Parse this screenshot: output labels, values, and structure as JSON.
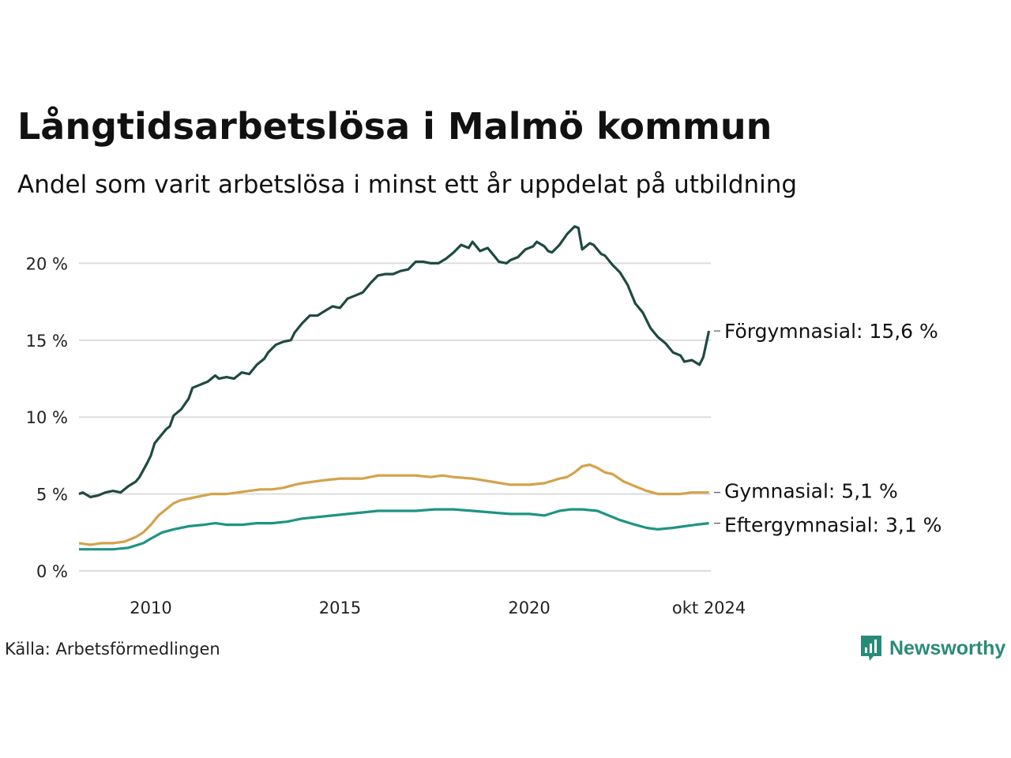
{
  "title": "Långtidsarbetslösa i Malmö kommun",
  "subtitle": "Andel som varit arbetslösa i minst ett år uppdelat på utbildning",
  "source": "Källa: Arbetsförmedlingen",
  "brand": {
    "name": "Newsworthy",
    "logo_icon": "bar-chart-speech-bubble-icon",
    "color": "#2a8a78"
  },
  "chart_data": {
    "type": "line",
    "ylim": [
      0,
      23
    ],
    "xlim": [
      2008.1,
      2024.8
    ],
    "grid": true,
    "y_ticks": [
      {
        "value": 0,
        "label": "0 %"
      },
      {
        "value": 5,
        "label": "5 %"
      },
      {
        "value": 10,
        "label": "10 %"
      },
      {
        "value": 15,
        "label": "15 %"
      },
      {
        "value": 20,
        "label": "20 %"
      }
    ],
    "x_ticks": [
      {
        "value": 2010,
        "label": "2010"
      },
      {
        "value": 2015,
        "label": "2015"
      },
      {
        "value": 2020,
        "label": "2020"
      },
      {
        "value": 2024.75,
        "label": "okt 2024"
      }
    ],
    "series": [
      {
        "name": "Förgymnasial",
        "end_label": "Förgymnasial: 15,6 %",
        "color": "#1f4a42",
        "points": [
          [
            2008.1,
            5.0
          ],
          [
            2008.2,
            5.1
          ],
          [
            2008.4,
            4.8
          ],
          [
            2008.6,
            4.9
          ],
          [
            2008.8,
            5.1
          ],
          [
            2009.0,
            5.2
          ],
          [
            2009.2,
            5.1
          ],
          [
            2009.4,
            5.5
          ],
          [
            2009.6,
            5.8
          ],
          [
            2009.7,
            6.1
          ],
          [
            2009.9,
            7.0
          ],
          [
            2010.0,
            7.5
          ],
          [
            2010.1,
            8.3
          ],
          [
            2010.3,
            8.9
          ],
          [
            2010.4,
            9.2
          ],
          [
            2010.5,
            9.4
          ],
          [
            2010.6,
            10.1
          ],
          [
            2010.8,
            10.5
          ],
          [
            2011.0,
            11.2
          ],
          [
            2011.1,
            11.9
          ],
          [
            2011.3,
            12.1
          ],
          [
            2011.5,
            12.3
          ],
          [
            2011.7,
            12.7
          ],
          [
            2011.8,
            12.5
          ],
          [
            2012.0,
            12.6
          ],
          [
            2012.2,
            12.5
          ],
          [
            2012.4,
            12.9
          ],
          [
            2012.6,
            12.8
          ],
          [
            2012.8,
            13.4
          ],
          [
            2013.0,
            13.8
          ],
          [
            2013.1,
            14.2
          ],
          [
            2013.3,
            14.7
          ],
          [
            2013.5,
            14.9
          ],
          [
            2013.7,
            15.0
          ],
          [
            2013.8,
            15.5
          ],
          [
            2014.0,
            16.1
          ],
          [
            2014.2,
            16.6
          ],
          [
            2014.4,
            16.6
          ],
          [
            2014.6,
            16.9
          ],
          [
            2014.8,
            17.2
          ],
          [
            2015.0,
            17.1
          ],
          [
            2015.2,
            17.7
          ],
          [
            2015.4,
            17.9
          ],
          [
            2015.6,
            18.1
          ],
          [
            2015.8,
            18.7
          ],
          [
            2016.0,
            19.2
          ],
          [
            2016.2,
            19.3
          ],
          [
            2016.4,
            19.3
          ],
          [
            2016.6,
            19.5
          ],
          [
            2016.8,
            19.6
          ],
          [
            2017.0,
            20.1
          ],
          [
            2017.2,
            20.1
          ],
          [
            2017.4,
            20.0
          ],
          [
            2017.6,
            20.0
          ],
          [
            2017.8,
            20.3
          ],
          [
            2018.0,
            20.7
          ],
          [
            2018.2,
            21.2
          ],
          [
            2018.4,
            21.0
          ],
          [
            2018.5,
            21.4
          ],
          [
            2018.7,
            20.8
          ],
          [
            2018.9,
            21.0
          ],
          [
            2019.0,
            20.7
          ],
          [
            2019.2,
            20.1
          ],
          [
            2019.4,
            20.0
          ],
          [
            2019.5,
            20.2
          ],
          [
            2019.7,
            20.4
          ],
          [
            2019.9,
            20.9
          ],
          [
            2020.1,
            21.1
          ],
          [
            2020.2,
            21.4
          ],
          [
            2020.4,
            21.1
          ],
          [
            2020.5,
            20.8
          ],
          [
            2020.6,
            20.7
          ],
          [
            2020.8,
            21.2
          ],
          [
            2021.0,
            21.9
          ],
          [
            2021.2,
            22.4
          ],
          [
            2021.3,
            22.3
          ],
          [
            2021.4,
            20.9
          ],
          [
            2021.6,
            21.3
          ],
          [
            2021.7,
            21.2
          ],
          [
            2021.9,
            20.6
          ],
          [
            2022.0,
            20.5
          ],
          [
            2022.2,
            19.9
          ],
          [
            2022.4,
            19.4
          ],
          [
            2022.6,
            18.6
          ],
          [
            2022.8,
            17.4
          ],
          [
            2023.0,
            16.8
          ],
          [
            2023.2,
            15.8
          ],
          [
            2023.4,
            15.2
          ],
          [
            2023.6,
            14.8
          ],
          [
            2023.8,
            14.2
          ],
          [
            2024.0,
            14.0
          ],
          [
            2024.1,
            13.6
          ],
          [
            2024.3,
            13.7
          ],
          [
            2024.5,
            13.4
          ],
          [
            2024.6,
            13.9
          ],
          [
            2024.75,
            15.6
          ]
        ]
      },
      {
        "name": "Gymnasial",
        "end_label": "Gymnasial:  5,1 %",
        "color": "#d4a24a",
        "points": [
          [
            2008.1,
            1.8
          ],
          [
            2008.4,
            1.7
          ],
          [
            2008.7,
            1.8
          ],
          [
            2009.0,
            1.8
          ],
          [
            2009.3,
            1.9
          ],
          [
            2009.6,
            2.2
          ],
          [
            2009.8,
            2.5
          ],
          [
            2010.0,
            3.0
          ],
          [
            2010.2,
            3.6
          ],
          [
            2010.4,
            4.0
          ],
          [
            2010.6,
            4.4
          ],
          [
            2010.8,
            4.6
          ],
          [
            2011.0,
            4.7
          ],
          [
            2011.2,
            4.8
          ],
          [
            2011.4,
            4.9
          ],
          [
            2011.6,
            5.0
          ],
          [
            2011.8,
            5.0
          ],
          [
            2012.0,
            5.0
          ],
          [
            2012.3,
            5.1
          ],
          [
            2012.6,
            5.2
          ],
          [
            2012.9,
            5.3
          ],
          [
            2013.2,
            5.3
          ],
          [
            2013.5,
            5.4
          ],
          [
            2013.8,
            5.6
          ],
          [
            2014.0,
            5.7
          ],
          [
            2014.3,
            5.8
          ],
          [
            2014.6,
            5.9
          ],
          [
            2015.0,
            6.0
          ],
          [
            2015.3,
            6.0
          ],
          [
            2015.6,
            6.0
          ],
          [
            2016.0,
            6.2
          ],
          [
            2016.3,
            6.2
          ],
          [
            2016.6,
            6.2
          ],
          [
            2017.0,
            6.2
          ],
          [
            2017.4,
            6.1
          ],
          [
            2017.7,
            6.2
          ],
          [
            2018.0,
            6.1
          ],
          [
            2018.5,
            6.0
          ],
          [
            2019.0,
            5.8
          ],
          [
            2019.5,
            5.6
          ],
          [
            2020.0,
            5.6
          ],
          [
            2020.4,
            5.7
          ],
          [
            2020.8,
            6.0
          ],
          [
            2021.0,
            6.1
          ],
          [
            2021.2,
            6.4
          ],
          [
            2021.4,
            6.8
          ],
          [
            2021.6,
            6.9
          ],
          [
            2021.8,
            6.7
          ],
          [
            2022.0,
            6.4
          ],
          [
            2022.2,
            6.3
          ],
          [
            2022.5,
            5.8
          ],
          [
            2022.8,
            5.5
          ],
          [
            2023.1,
            5.2
          ],
          [
            2023.4,
            5.0
          ],
          [
            2023.7,
            5.0
          ],
          [
            2024.0,
            5.0
          ],
          [
            2024.3,
            5.1
          ],
          [
            2024.75,
            5.1
          ]
        ]
      },
      {
        "name": "Eftergymnasial",
        "end_label": "Eftergymnasial:  3,1 %",
        "color": "#1e9484",
        "points": [
          [
            2008.1,
            1.4
          ],
          [
            2008.5,
            1.4
          ],
          [
            2009.0,
            1.4
          ],
          [
            2009.4,
            1.5
          ],
          [
            2009.8,
            1.8
          ],
          [
            2010.0,
            2.1
          ],
          [
            2010.3,
            2.5
          ],
          [
            2010.6,
            2.7
          ],
          [
            2011.0,
            2.9
          ],
          [
            2011.4,
            3.0
          ],
          [
            2011.7,
            3.1
          ],
          [
            2012.0,
            3.0
          ],
          [
            2012.4,
            3.0
          ],
          [
            2012.8,
            3.1
          ],
          [
            2013.2,
            3.1
          ],
          [
            2013.6,
            3.2
          ],
          [
            2014.0,
            3.4
          ],
          [
            2014.4,
            3.5
          ],
          [
            2014.8,
            3.6
          ],
          [
            2015.2,
            3.7
          ],
          [
            2015.6,
            3.8
          ],
          [
            2016.0,
            3.9
          ],
          [
            2016.5,
            3.9
          ],
          [
            2017.0,
            3.9
          ],
          [
            2017.5,
            4.0
          ],
          [
            2018.0,
            4.0
          ],
          [
            2018.5,
            3.9
          ],
          [
            2019.0,
            3.8
          ],
          [
            2019.5,
            3.7
          ],
          [
            2020.0,
            3.7
          ],
          [
            2020.4,
            3.6
          ],
          [
            2020.8,
            3.9
          ],
          [
            2021.1,
            4.0
          ],
          [
            2021.4,
            4.0
          ],
          [
            2021.8,
            3.9
          ],
          [
            2022.1,
            3.6
          ],
          [
            2022.4,
            3.3
          ],
          [
            2022.8,
            3.0
          ],
          [
            2023.1,
            2.8
          ],
          [
            2023.4,
            2.7
          ],
          [
            2023.8,
            2.8
          ],
          [
            2024.1,
            2.9
          ],
          [
            2024.4,
            3.0
          ],
          [
            2024.75,
            3.1
          ]
        ]
      }
    ]
  }
}
